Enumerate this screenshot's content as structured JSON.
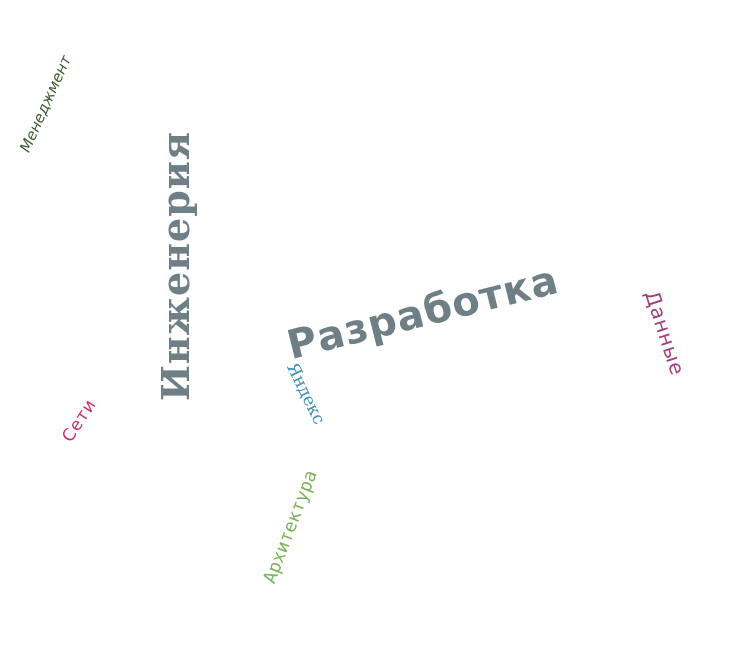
{
  "word_cloud": {
    "words": [
      {
        "text": "Разработка",
        "color": "#6f7f86"
      },
      {
        "text": "Инженерия",
        "color": "#6f7f86"
      },
      {
        "text": "Менеджмент",
        "color": "#3d5c2e"
      },
      {
        "text": "Данные",
        "color": "#a33f7a"
      },
      {
        "text": "Сети",
        "color": "#c72f6e"
      },
      {
        "text": "Яндекс",
        "color": "#3f8fb0"
      },
      {
        "text": "Архитектура",
        "color": "#7bb35a"
      }
    ]
  }
}
